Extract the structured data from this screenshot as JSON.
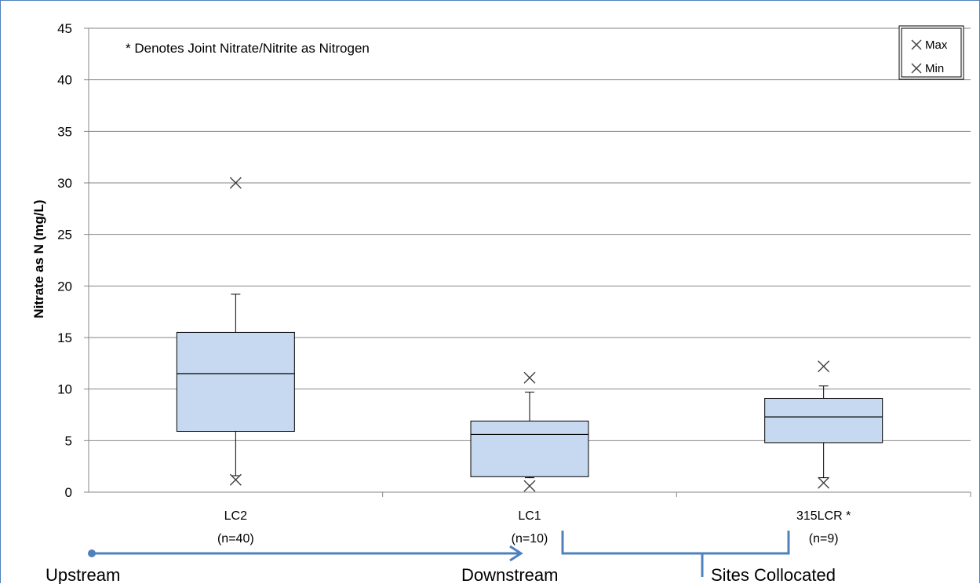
{
  "chart_data": {
    "type": "box",
    "ylabel": "Nitrate as N (mg/L)",
    "ylim": [
      0,
      45
    ],
    "yticks": [
      0,
      5,
      10,
      15,
      20,
      25,
      30,
      35,
      40,
      45
    ],
    "grid": true,
    "annotation": "* Denotes Joint Nitrate/Nitrite as Nitrogen",
    "legend": {
      "placement": "top-right",
      "entries": [
        "Max",
        "Min"
      ]
    },
    "boxes": [
      {
        "category": "LC2",
        "n_label": "(n=40)",
        "min": 1.2,
        "whisker_low": 1.6,
        "q1": 5.9,
        "median": 11.5,
        "q3": 15.5,
        "whisker_high": 19.2,
        "max": 30.0
      },
      {
        "category": "LC1",
        "n_label": "(n=10)",
        "min": 0.6,
        "whisker_low": 1.4,
        "q1": 1.5,
        "median": 5.6,
        "q3": 6.9,
        "whisker_high": 9.7,
        "max": 11.1
      },
      {
        "category": "315LCR *",
        "n_label": "(n=9)",
        "min": 0.9,
        "whisker_low": 1.4,
        "q1": 4.8,
        "median": 7.3,
        "q3": 9.1,
        "whisker_high": 10.3,
        "max": 12.2
      }
    ],
    "colors": {
      "box_fill": "#c6d9f1",
      "box_stroke": "#000000",
      "grid": "#868686",
      "flow": "#4f81bd"
    }
  },
  "flow": {
    "upstream_label": "Upstream",
    "downstream_label": "Downstream",
    "collocated_label": "Sites Collocated"
  }
}
